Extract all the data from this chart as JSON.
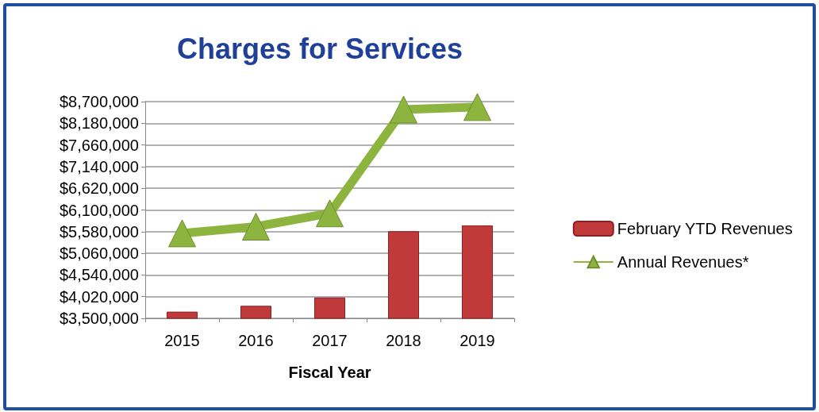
{
  "chart_data": {
    "type": "bar",
    "title": "Charges for Services",
    "xlabel": "Fiscal Year",
    "categories": [
      "2015",
      "2016",
      "2017",
      "2018",
      "2019"
    ],
    "series": [
      {
        "name": "February YTD Revenues",
        "color": "#c0393b",
        "values": [
          3660000,
          3800000,
          4000000,
          5590000,
          5730000
        ]
      },
      {
        "name": "Annual Revenues*",
        "type": "line",
        "color": "#8db43e",
        "marker": "triangle",
        "values": [
          5540000,
          5700000,
          6020000,
          8510000,
          8570000
        ]
      }
    ],
    "ylim": [
      3500000,
      8700000
    ],
    "yticks": [
      {
        "value": 3500000,
        "label": "$3,500,000"
      },
      {
        "value": 4020000,
        "label": "$4,020,000"
      },
      {
        "value": 4540000,
        "label": "$4,540,000"
      },
      {
        "value": 5060000,
        "label": "$5,060,000"
      },
      {
        "value": 5580000,
        "label": "$5,580,000"
      },
      {
        "value": 6100000,
        "label": "$6,100,000"
      },
      {
        "value": 6620000,
        "label": "$6,620,000"
      },
      {
        "value": 7140000,
        "label": "$7,140,000"
      },
      {
        "value": 7660000,
        "label": "$7,660,000"
      },
      {
        "value": 8180000,
        "label": "$8,180,000"
      },
      {
        "value": 8700000,
        "label": "$8,700,000"
      }
    ],
    "grid": "y",
    "legend": "right"
  }
}
